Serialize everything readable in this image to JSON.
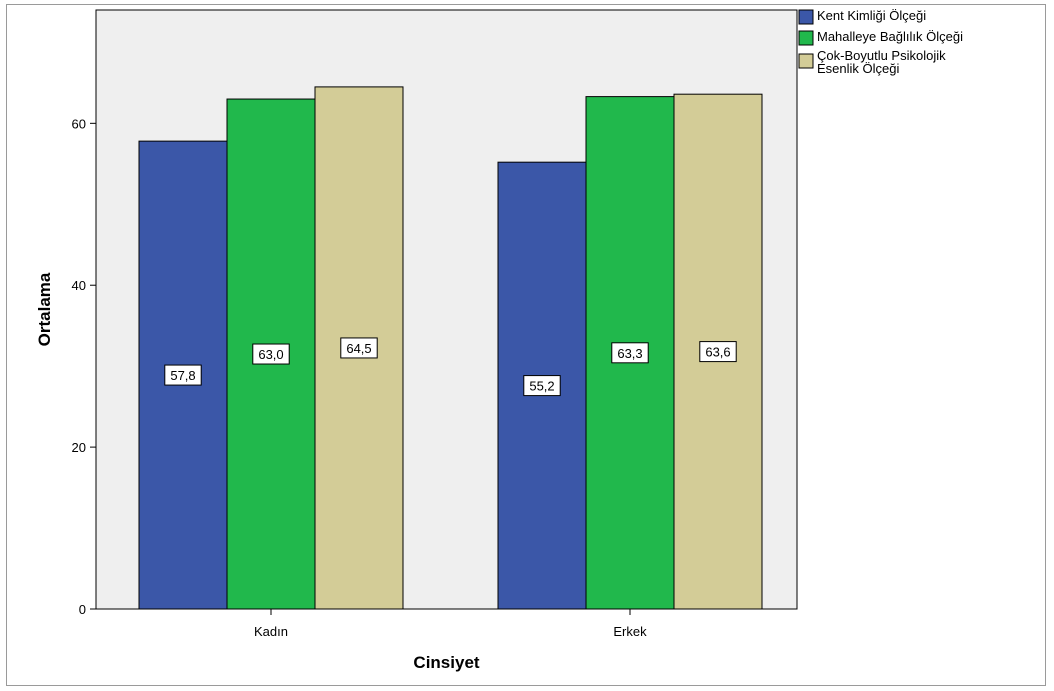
{
  "chart_data": {
    "type": "bar",
    "title": "",
    "xlabel": "Cinsiyet",
    "ylabel": "Ortalama",
    "categories": [
      "Kadın",
      "Erkek"
    ],
    "series": [
      {
        "name": "Kent Kimliği Ölçeği",
        "values": [
          57.8,
          55.2
        ],
        "labels": [
          "57,8",
          "55,2"
        ],
        "color": "#3b57a8"
      },
      {
        "name": "Mahalleye Bağlılık Ölçeği",
        "values": [
          63.0,
          63.3
        ],
        "labels": [
          "63,0",
          "63,3"
        ],
        "color": "#21b84c"
      },
      {
        "name": "Çok-Boyutlu Psikolojik Esenlik Ölçeği",
        "legend_lines": [
          "Çok-Boyutlu Psikolojik",
          "Esenlik Ölçeği"
        ],
        "values": [
          64.5,
          63.6
        ],
        "labels": [
          "64,5",
          "63,6"
        ],
        "color": "#d3cc97"
      }
    ],
    "ylim": [
      0,
      74
    ],
    "yticks": [
      0,
      20,
      40,
      60
    ],
    "ytick_labels": [
      "0",
      "20",
      "40",
      "60"
    ],
    "grid": false,
    "legend_position": "top-right",
    "plot_background": "#efefef",
    "bar_border": "#000000"
  }
}
